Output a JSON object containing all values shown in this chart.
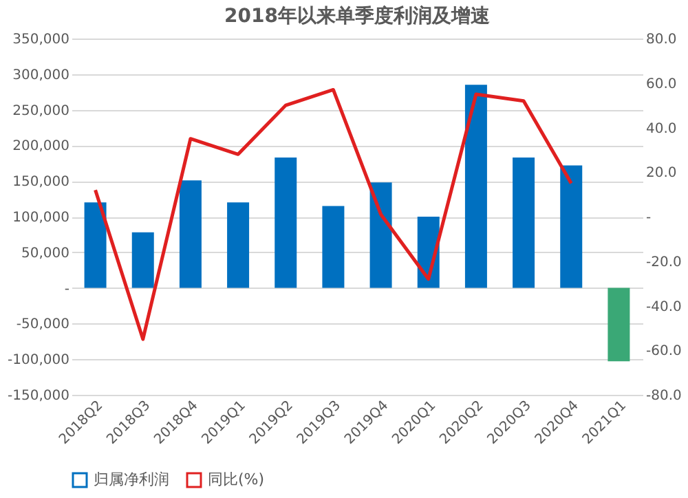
{
  "chart_data": {
    "type": "bar",
    "title": "2018年以来单季度利润及增速",
    "categories": [
      "2018Q2",
      "2018Q3",
      "2018Q4",
      "2019Q1",
      "2019Q2",
      "2019Q3",
      "2019Q4",
      "2020Q1",
      "2020Q2",
      "2020Q3",
      "2020Q4",
      "2021Q1"
    ],
    "series": [
      {
        "name": "归属净利润",
        "color": "#0070c0",
        "colors": [
          "#0070c0",
          "#0070c0",
          "#0070c0",
          "#0070c0",
          "#0070c0",
          "#0070c0",
          "#0070c0",
          "#0070c0",
          "#0070c0",
          "#0070c0",
          "#0070c0",
          "#3aa876"
        ],
        "values": [
          120000,
          78000,
          151000,
          120000,
          183000,
          115000,
          148000,
          100000,
          285000,
          183000,
          172000,
          -103000
        ]
      },
      {
        "name": "同比(%)",
        "type": "line",
        "axis": "y2",
        "color": "#e02020",
        "values": [
          12,
          -55,
          35,
          28,
          50,
          57,
          1,
          -28,
          55,
          52,
          15,
          null
        ]
      }
    ],
    "ylim": [
      -150000,
      350000
    ],
    "yticks": [
      {
        "value": -150000,
        "label": "-150,000"
      },
      {
        "value": -100000,
        "label": "-100,000"
      },
      {
        "value": -50000,
        "label": "-50,000"
      },
      {
        "value": 0,
        "label": "-"
      },
      {
        "value": 50000,
        "label": "50,000"
      },
      {
        "value": 100000,
        "label": "100,000"
      },
      {
        "value": 150000,
        "label": "150,000"
      },
      {
        "value": 200000,
        "label": "200,000"
      },
      {
        "value": 250000,
        "label": "250,000"
      },
      {
        "value": 300000,
        "label": "300,000"
      },
      {
        "value": 350000,
        "label": "350,000"
      }
    ],
    "y2lim": [
      -80,
      80
    ],
    "y2ticks": [
      {
        "value": -80,
        "label": "-80.0"
      },
      {
        "value": -60,
        "label": "-60.0"
      },
      {
        "value": -40,
        "label": "-40.0"
      },
      {
        "value": -20,
        "label": "-20.0"
      },
      {
        "value": 0,
        "label": "-"
      },
      {
        "value": 20,
        "label": "20.0"
      },
      {
        "value": 40,
        "label": "40.0"
      },
      {
        "value": 60,
        "label": "60.0"
      },
      {
        "value": 80,
        "label": "80.0"
      }
    ],
    "grid": "y",
    "legend": "bottom"
  }
}
